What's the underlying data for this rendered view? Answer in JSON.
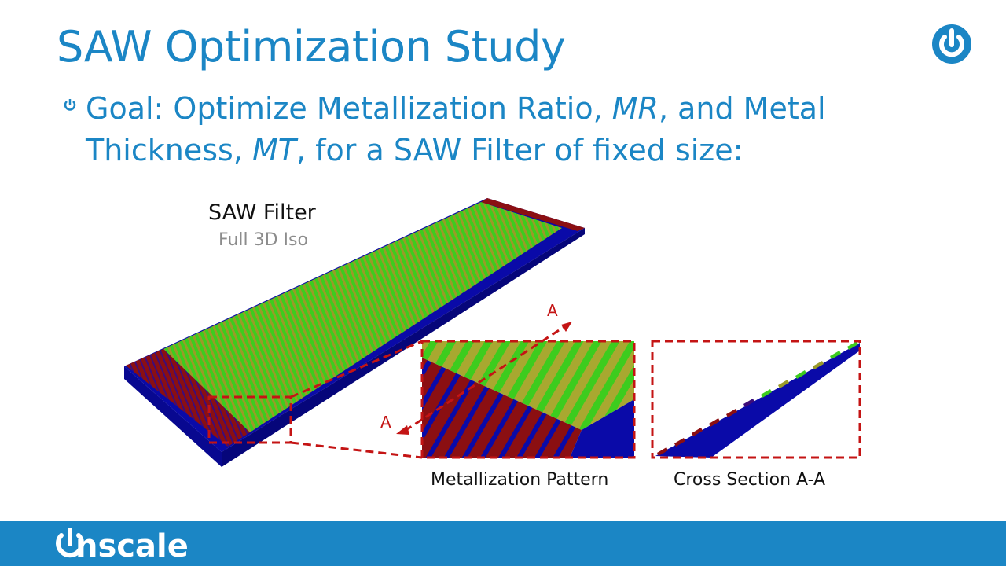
{
  "slide": {
    "title": "SAW Optimization Study",
    "bullet": {
      "p1": "Goal: Optimize Metallization Ratio, ",
      "mr": "MR",
      "p2": ", and Metal Thickness, ",
      "mt": "MT",
      "p3": ", for a SAW Filter of fixed size:"
    }
  },
  "figure": {
    "main_label": "SAW Filter",
    "main_sublabel": "Full 3D Iso",
    "detail_label": "Metallization Pattern",
    "section_label": "Cross Section A-A",
    "section_marker_top": "A",
    "section_marker_bottom": "A"
  },
  "footer": {
    "brand": "onscale"
  },
  "colors": {
    "accent": "#1b86c5",
    "substrate": "#0a0aa8",
    "metal_green": "#3dcc1e",
    "metal_olive": "#9a9a28",
    "electrode_red": "#8b0f12",
    "dash_red": "#c41414"
  },
  "icons": [
    "power-icon",
    "bullet-power-icon",
    "onscale-logo"
  ]
}
